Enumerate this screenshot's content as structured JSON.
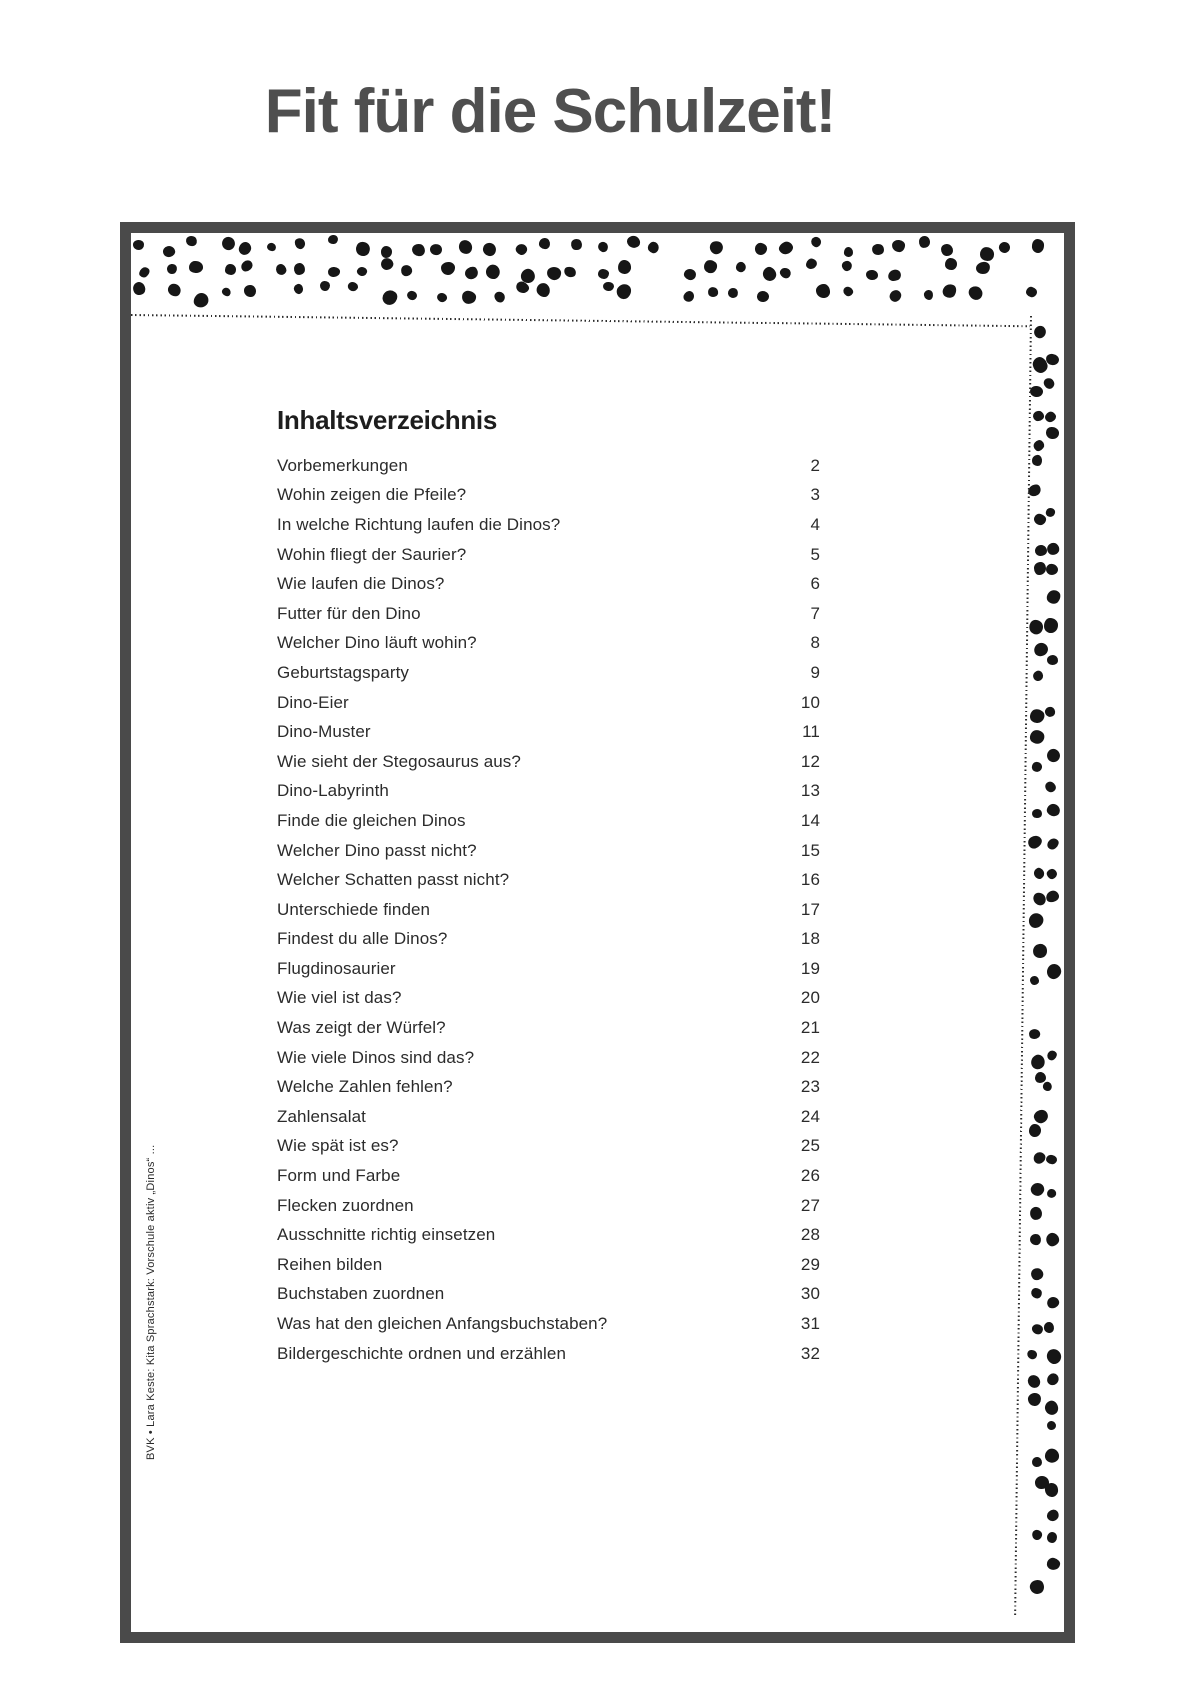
{
  "page": {
    "title": "Fit für die Schulzeit!"
  },
  "toc": {
    "heading": "Inhaltsverzeichnis",
    "entries": [
      {
        "label": "Vorbemerkungen",
        "page": "2"
      },
      {
        "label": "Wohin zeigen die Pfeile?",
        "page": "3"
      },
      {
        "label": "In welche Richtung laufen die Dinos?",
        "page": "4"
      },
      {
        "label": "Wohin fliegt der Saurier?",
        "page": "5"
      },
      {
        "label": "Wie laufen die Dinos?",
        "page": "6"
      },
      {
        "label": "Futter für den Dino",
        "page": "7"
      },
      {
        "label": "Welcher Dino läuft wohin?",
        "page": "8"
      },
      {
        "label": "Geburtstagsparty",
        "page": "9"
      },
      {
        "label": "Dino-Eier",
        "page": "10"
      },
      {
        "label": "Dino-Muster",
        "page": "11"
      },
      {
        "label": "Wie sieht der Stegosaurus aus?",
        "page": "12"
      },
      {
        "label": "Dino-Labyrinth",
        "page": "13"
      },
      {
        "label": "Finde die gleichen Dinos",
        "page": "14"
      },
      {
        "label": "Welcher Dino passt nicht?",
        "page": "15"
      },
      {
        "label": "Welcher Schatten passt nicht?",
        "page": "16"
      },
      {
        "label": "Unterschiede finden",
        "page": "17"
      },
      {
        "label": "Findest du alle Dinos?",
        "page": "18"
      },
      {
        "label": "Flugdinosaurier",
        "page": "19"
      },
      {
        "label": "Wie viel ist das?",
        "page": "20"
      },
      {
        "label": "Was zeigt der Würfel?",
        "page": "21"
      },
      {
        "label": "Wie viele Dinos sind das?",
        "page": "22"
      },
      {
        "label": "Welche Zahlen fehlen?",
        "page": "23"
      },
      {
        "label": "Zahlensalat",
        "page": "24"
      },
      {
        "label": "Wie spät ist es?",
        "page": "25"
      },
      {
        "label": "Form und Farbe",
        "page": "26"
      },
      {
        "label": "Flecken zuordnen",
        "page": "27"
      },
      {
        "label": "Ausschnitte richtig einsetzen",
        "page": "28"
      },
      {
        "label": "Reihen bilden",
        "page": "29"
      },
      {
        "label": "Buchstaben zuordnen",
        "page": "30"
      },
      {
        "label": "Was hat den gleichen Anfangsbuchstaben?",
        "page": "31"
      },
      {
        "label": "Bildergeschichte ordnen und erzählen",
        "page": "32"
      }
    ]
  },
  "side_caption": "BVK • Lara Keste: Kita Sprachstark: Vorschule aktiv „Dinos“ ...",
  "colors": {
    "frame_border": "#4a4a4a",
    "title_text": "#4f4f4f",
    "heading_text": "#1d1d1d",
    "body_text": "#2b2b2b",
    "dot": "#161616"
  }
}
